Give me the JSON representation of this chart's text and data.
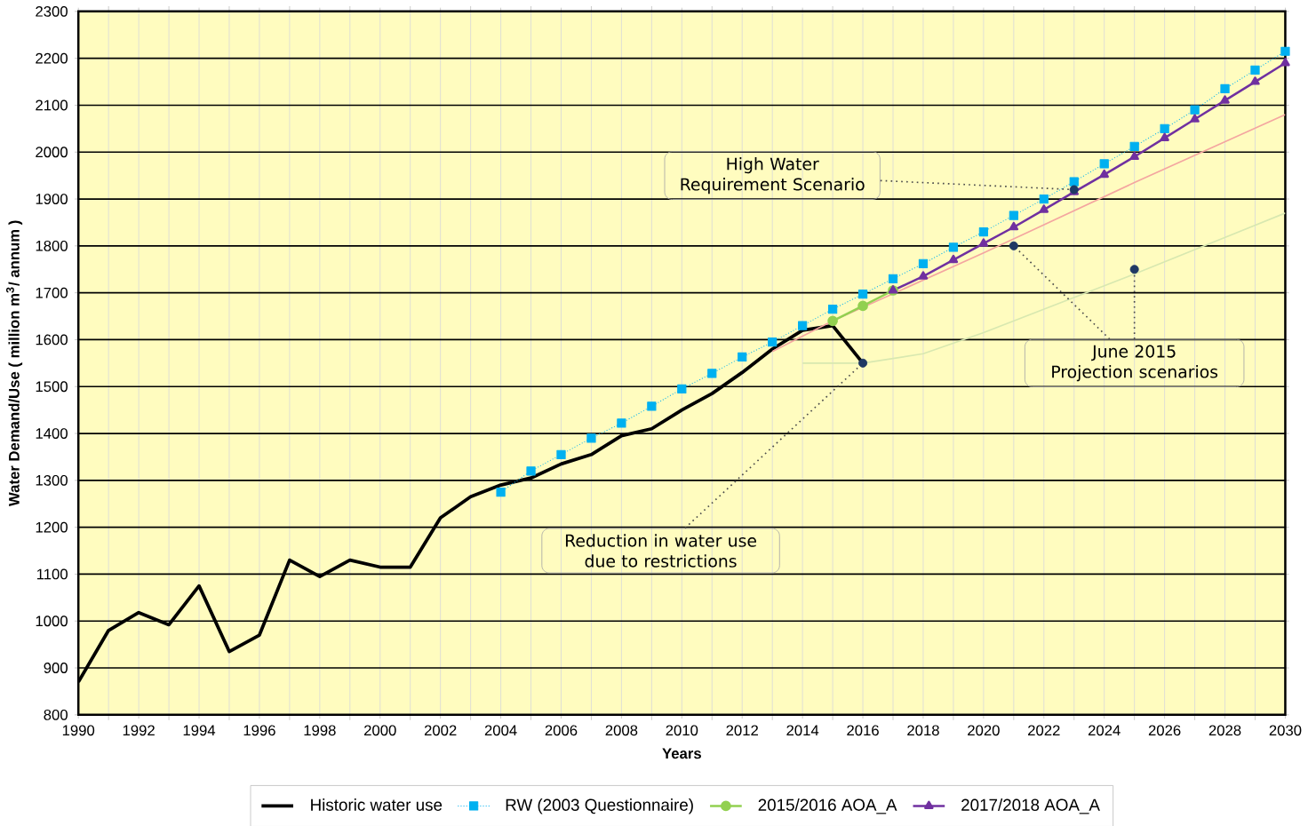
{
  "chart_data": {
    "type": "line",
    "xlabel": "Years",
    "ylabel": "Water Demand/Use  ( million m$^{3}$/ annum )",
    "xlim": [
      1990,
      2030
    ],
    "ylim": [
      800,
      2300
    ],
    "xticks": [
      1990,
      1992,
      1994,
      1996,
      1998,
      2000,
      2002,
      2004,
      2006,
      2008,
      2010,
      2012,
      2014,
      2016,
      2018,
      2020,
      2022,
      2024,
      2026,
      2028,
      2030
    ],
    "yticks": [
      800,
      900,
      1000,
      1100,
      1200,
      1300,
      1400,
      1500,
      1600,
      1700,
      1800,
      1900,
      2000,
      2100,
      2200,
      2300
    ],
    "grid": true,
    "legend": "bottom",
    "series": [
      {
        "name": "Historic water use",
        "color": "#000000",
        "marker": "none",
        "line_style": "solid",
        "x": [
          1990,
          1991,
          1992,
          1993,
          1994,
          1995,
          1996,
          1997,
          1998,
          1999,
          2000,
          2001,
          2002,
          2003,
          2004,
          2005,
          2006,
          2007,
          2008,
          2009,
          2010,
          2011,
          2012,
          2013,
          2014,
          2015,
          2016
        ],
        "values": [
          870,
          980,
          1018,
          992,
          1075,
          935,
          970,
          1130,
          1095,
          1130,
          1115,
          1115,
          1220,
          1265,
          1290,
          1305,
          1335,
          1355,
          1395,
          1410,
          1450,
          1485,
          1530,
          1580,
          1620,
          1630,
          1550
        ]
      },
      {
        "name": "RW (2003 Questionnaire)",
        "color": "#00b0f0",
        "marker": "square",
        "line_style": "dotted",
        "x": [
          2004,
          2005,
          2006,
          2007,
          2008,
          2009,
          2010,
          2011,
          2012,
          2013,
          2014,
          2015,
          2016,
          2017,
          2018,
          2019,
          2020,
          2021,
          2022,
          2023,
          2024,
          2025,
          2026,
          2027,
          2028,
          2029,
          2030
        ],
        "values": [
          1275,
          1320,
          1355,
          1390,
          1422,
          1458,
          1495,
          1528,
          1563,
          1595,
          1630,
          1665,
          1697,
          1730,
          1762,
          1797,
          1830,
          1865,
          1900,
          1937,
          1975,
          2012,
          2050,
          2090,
          2135,
          2175,
          2215
        ]
      },
      {
        "color": "#f4a6a0",
        "marker": "none",
        "line_style": "solid",
        "x": [
          2013,
          2015,
          2020,
          2025,
          2030
        ],
        "values": [
          1575,
          1640,
          1785,
          1935,
          2080
        ]
      },
      {
        "color": "#d8e8b0",
        "marker": "none",
        "line_style": "solid",
        "x": [
          2014,
          2016,
          2018,
          2020,
          2025,
          2030
        ],
        "values": [
          1550,
          1550,
          1570,
          1615,
          1740,
          1870
        ]
      },
      {
        "name": "2015/2016 AOA_A",
        "color": "#92d050",
        "marker": "circle",
        "line_style": "solid",
        "x": [
          2015,
          2016,
          2017
        ],
        "values": [
          1640,
          1672,
          1705
        ]
      },
      {
        "name": "2017/2018 AOA_A",
        "color": "#7030a0",
        "marker": "triangle",
        "line_style": "solid",
        "x": [
          2017,
          2018,
          2019,
          2020,
          2021,
          2022,
          2023,
          2024,
          2025,
          2026,
          2027,
          2028,
          2029,
          2030
        ],
        "values": [
          1705,
          1735,
          1770,
          1805,
          1840,
          1877,
          1915,
          1952,
          1990,
          2030,
          2070,
          2110,
          2150,
          2190
        ]
      },
      {
        "type": "scatter",
        "color": "#1f3864",
        "marker": "circle",
        "x": [
          2016,
          2021,
          2023,
          2025
        ],
        "values": [
          1550,
          1800,
          1920,
          1750
        ]
      }
    ],
    "annotations": [
      {
        "text": "High Water Requirement Scenario",
        "x": 2023,
        "y": 1920
      },
      {
        "text": "Reduction in water use due to restrictions",
        "x": 2016,
        "y": 1550
      },
      {
        "text": "June 2015 Projection scenarios",
        "x": 2021,
        "y": 1800
      }
    ]
  }
}
